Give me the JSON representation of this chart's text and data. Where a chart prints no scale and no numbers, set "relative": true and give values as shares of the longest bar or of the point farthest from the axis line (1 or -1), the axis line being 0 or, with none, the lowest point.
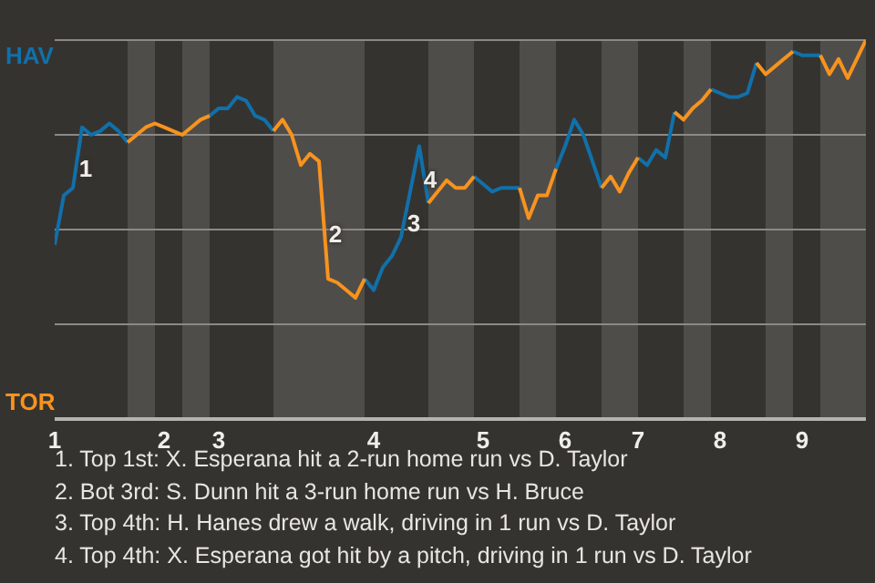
{
  "chart_data": {
    "type": "line",
    "relative": true,
    "categories": [
      "1",
      null,
      null,
      null,
      null,
      null,
      null,
      null,
      null,
      null,
      null,
      null,
      "2",
      null,
      null,
      null,
      null,
      null,
      "3",
      null,
      null,
      null,
      null,
      null,
      null,
      null,
      null,
      null,
      null,
      null,
      null,
      null,
      null,
      null,
      null,
      "4",
      null,
      null,
      null,
      null,
      null,
      null,
      null,
      null,
      null,
      null,
      null,
      "5",
      null,
      null,
      null,
      null,
      null,
      null,
      null,
      null,
      "6",
      null,
      null,
      null,
      null,
      null,
      null,
      null,
      "7",
      null,
      null,
      null,
      null,
      null,
      null,
      null,
      null,
      "8",
      null,
      null,
      null,
      null,
      null,
      null,
      null,
      null,
      "9",
      null,
      null,
      null,
      null,
      null,
      null,
      null
    ],
    "series": [
      {
        "color": "#1170aa",
        "values": [
          0.46,
          0.59,
          0.61,
          0.77,
          0.75,
          0.76,
          0.78,
          0.76,
          0.73,
          null,
          null,
          null,
          null,
          null,
          null,
          null,
          null,
          0.8,
          0.82,
          0.82,
          0.85,
          0.84,
          0.8,
          0.79,
          0.76,
          null,
          null,
          null,
          null,
          null,
          null,
          null,
          null,
          null,
          0.37,
          0.34,
          0.4,
          0.43,
          0.48,
          0.6,
          0.72,
          0.57,
          null,
          null,
          null,
          null,
          0.64,
          0.62,
          0.6,
          0.61,
          0.61,
          0.61,
          null,
          null,
          null,
          0.66,
          0.72,
          0.79,
          0.75,
          0.68,
          0.61,
          null,
          null,
          null,
          0.69,
          0.67,
          0.71,
          0.69,
          0.81,
          null,
          null,
          null,
          0.87,
          0.86,
          0.85,
          0.85,
          0.86,
          0.94,
          null,
          null,
          null,
          0.97,
          0.96,
          0.96,
          0.96,
          null,
          null,
          null,
          null,
          null
        ]
      },
      {
        "color": "#f7931e",
        "values": [
          null,
          null,
          null,
          null,
          null,
          null,
          null,
          null,
          0.73,
          0.75,
          0.77,
          0.78,
          0.77,
          0.76,
          0.75,
          0.77,
          0.79,
          0.8,
          null,
          null,
          null,
          null,
          null,
          null,
          0.76,
          0.79,
          0.75,
          0.67,
          0.7,
          0.68,
          0.37,
          0.36,
          0.34,
          0.32,
          0.37,
          null,
          null,
          null,
          null,
          null,
          null,
          0.57,
          0.6,
          0.63,
          0.61,
          0.61,
          0.64,
          null,
          null,
          null,
          null,
          0.61,
          0.53,
          0.59,
          0.59,
          0.66,
          null,
          null,
          null,
          null,
          0.61,
          0.64,
          0.6,
          0.65,
          0.69,
          null,
          null,
          null,
          0.81,
          0.79,
          0.82,
          0.84,
          0.87,
          null,
          null,
          null,
          null,
          0.94,
          0.91,
          0.93,
          0.95,
          0.97,
          null,
          null,
          0.96,
          0.91,
          0.95,
          0.9,
          0.95,
          1.0
        ]
      }
    ],
    "ref_lines": [
      {
        "axis": "y",
        "value": 0.25,
        "color": "#8c8a87"
      },
      {
        "axis": "y",
        "value": 0.5,
        "color": "#8c8a87"
      },
      {
        "axis": "y",
        "value": 0.75,
        "color": "#8c8a87"
      },
      {
        "axis": "y",
        "value": 1,
        "color": "#8c8a87"
      }
    ],
    "annotations": [
      "HAV",
      "TOR",
      "1",
      "2",
      "3",
      "4",
      "1. Top 1st: X. Esperana hit a 2-run home run vs D. Taylor",
      "2. Bot 3rd: S. Dunn hit a 3-run home run vs H. Bruce",
      "3. Top 4th: H. Hanes drew a walk, driving in 1 run vs D. Taylor",
      "4. Top 4th: X. Esperana got hit by a pitch, driving in 1 run vs D. Taylor"
    ]
  }
}
